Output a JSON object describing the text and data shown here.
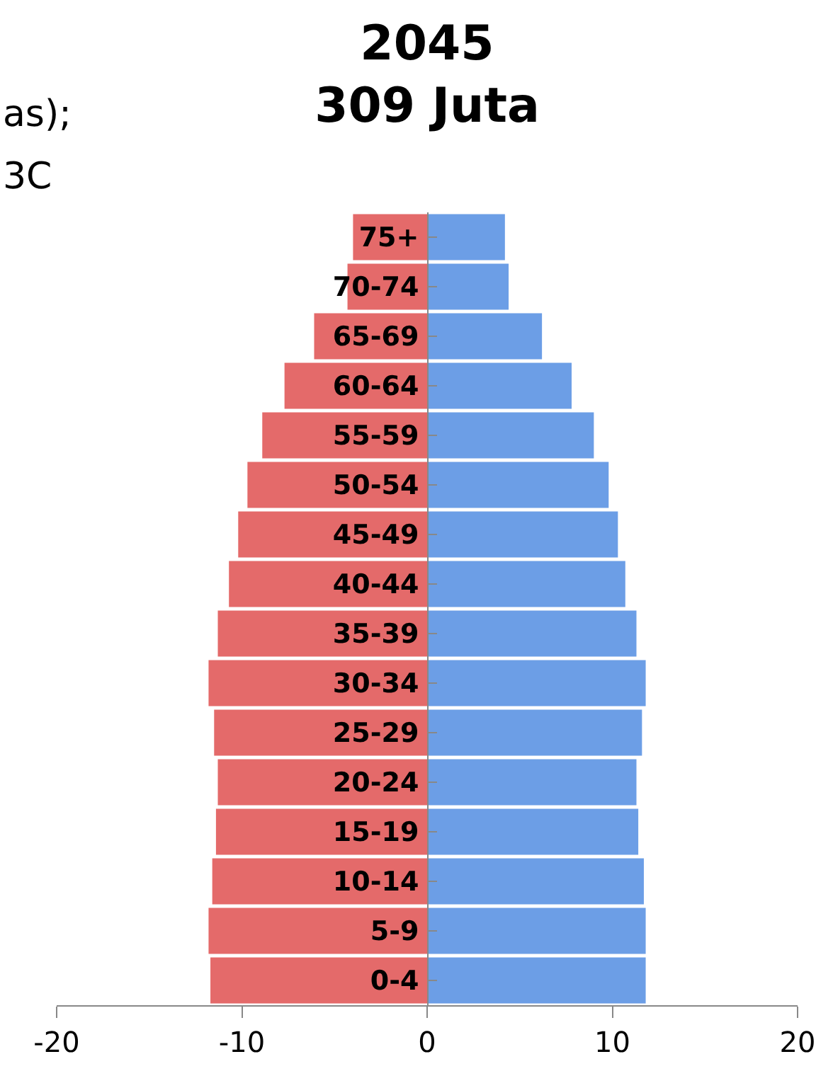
{
  "chart_data": {
    "type": "bar",
    "orientation": "horizontal",
    "title": "2045\n309 Juta",
    "categories": [
      "75+",
      "70-74",
      "65-69",
      "60-64",
      "55-59",
      "50-54",
      "45-49",
      "40-44",
      "35-39",
      "30-34",
      "25-29",
      "20-24",
      "15-19",
      "10-14",
      "5-9",
      "0-4"
    ],
    "series": [
      {
        "color": "#e46a6a",
        "values": [
          -4.0,
          -4.3,
          -6.1,
          -7.7,
          -8.9,
          -9.7,
          -10.2,
          -10.7,
          -11.3,
          -11.8,
          -11.5,
          -11.3,
          -11.4,
          -11.6,
          -11.8,
          -11.7
        ]
      },
      {
        "color": "#6c9ee6",
        "values": [
          4.2,
          4.4,
          6.2,
          7.8,
          9.0,
          9.8,
          10.3,
          10.7,
          11.3,
          11.8,
          11.6,
          11.3,
          11.4,
          11.7,
          11.8,
          11.8
        ]
      }
    ],
    "xlim": [
      -20,
      20
    ],
    "xticks": [
      -20,
      -10,
      0,
      10,
      20
    ],
    "stacked": true,
    "annotations": [
      "as);",
      "3C"
    ]
  }
}
